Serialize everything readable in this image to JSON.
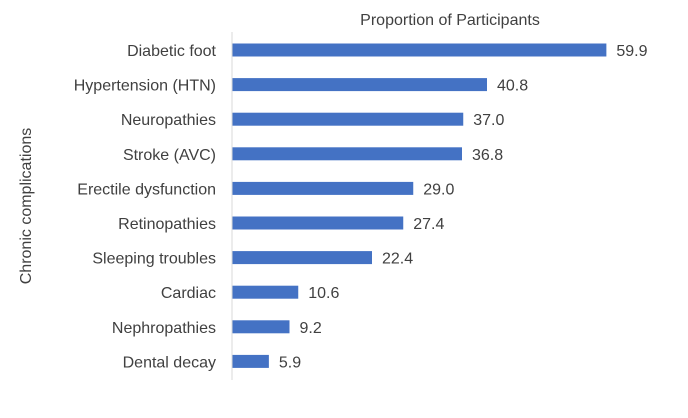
{
  "chart_data": {
    "type": "bar",
    "orientation": "horizontal",
    "title": "Proportion of Participants",
    "xlabel": "",
    "ylabel": "Chronic complications",
    "categories": [
      "Diabetic foot",
      "Hypertension (HTN)",
      "Neuropathies",
      "Stroke (AVC)",
      "Erectile dysfunction",
      "Retinopathies",
      "Sleeping troubles",
      "Cardiac",
      "Nephropathies",
      "Dental decay"
    ],
    "values": [
      59.9,
      40.8,
      37.0,
      36.8,
      29.0,
      27.4,
      22.4,
      10.6,
      9.2,
      5.9
    ],
    "data_labels": [
      "59.9",
      "40.8",
      "37.0",
      "36.8",
      "29.0",
      "27.4",
      "22.4",
      "10.6",
      "9.2",
      "5.9"
    ],
    "xlim": [
      0,
      70
    ],
    "grid": false,
    "legend": "none",
    "bar_color": "#4472C4",
    "axis_color": "#D9D9D9",
    "text_color": "#404040"
  }
}
